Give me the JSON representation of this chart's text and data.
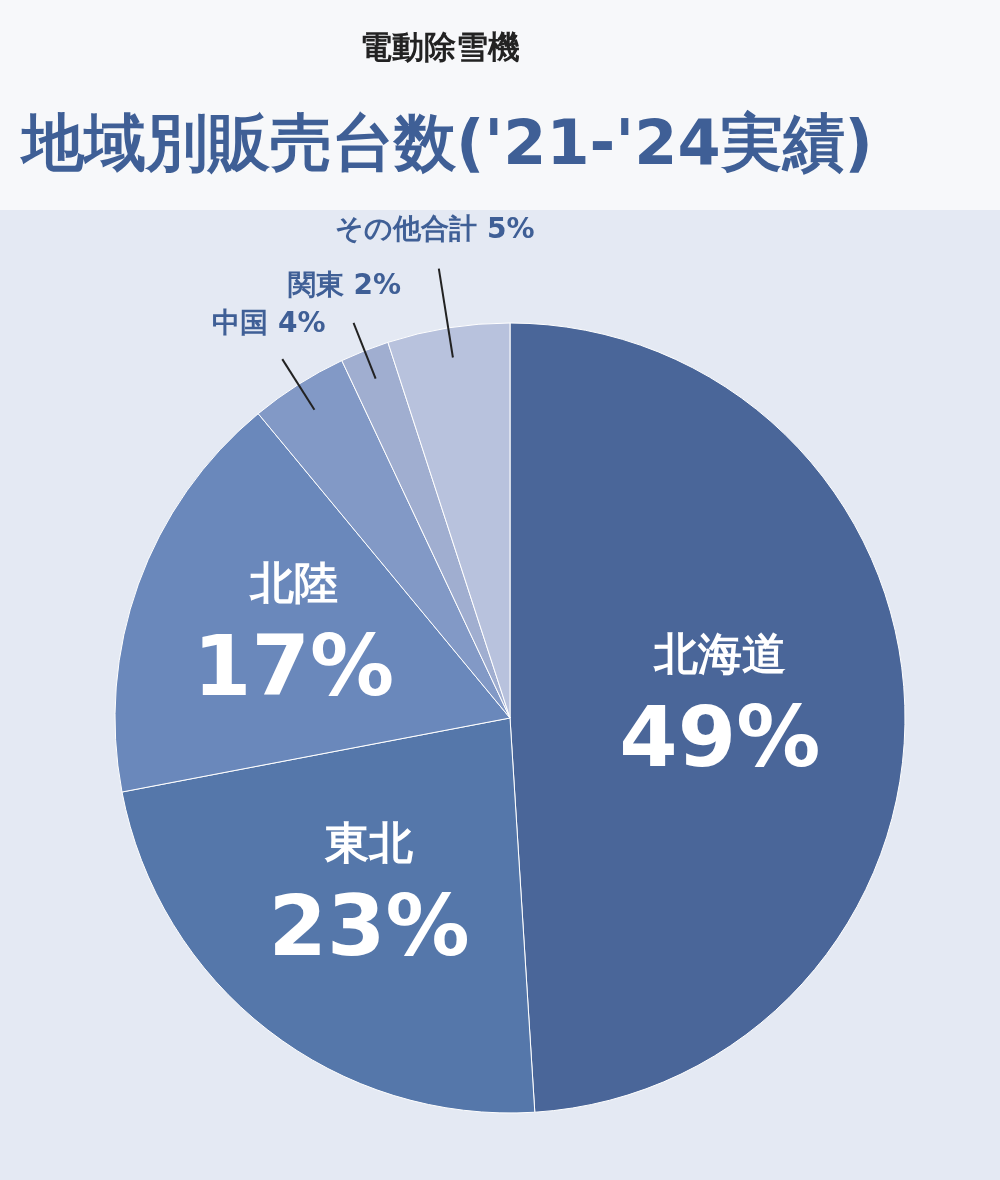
{
  "chart_data": {
    "type": "pie",
    "title": "地域別販売台数('21-'24実績)",
    "subtitle": "電動除雪機",
    "categories": [
      "北海道",
      "東北",
      "北陸",
      "中国",
      "関東",
      "その他合計"
    ],
    "values": [
      49,
      23,
      17,
      4,
      2,
      5
    ],
    "value_labels": [
      "49%",
      "23%",
      "17%",
      "4%",
      "2%",
      "5%"
    ],
    "colors": [
      "#4a6699",
      "#5577aa",
      "#6a88bb",
      "#8299c6",
      "#a0aed0",
      "#b8c2dd"
    ]
  }
}
